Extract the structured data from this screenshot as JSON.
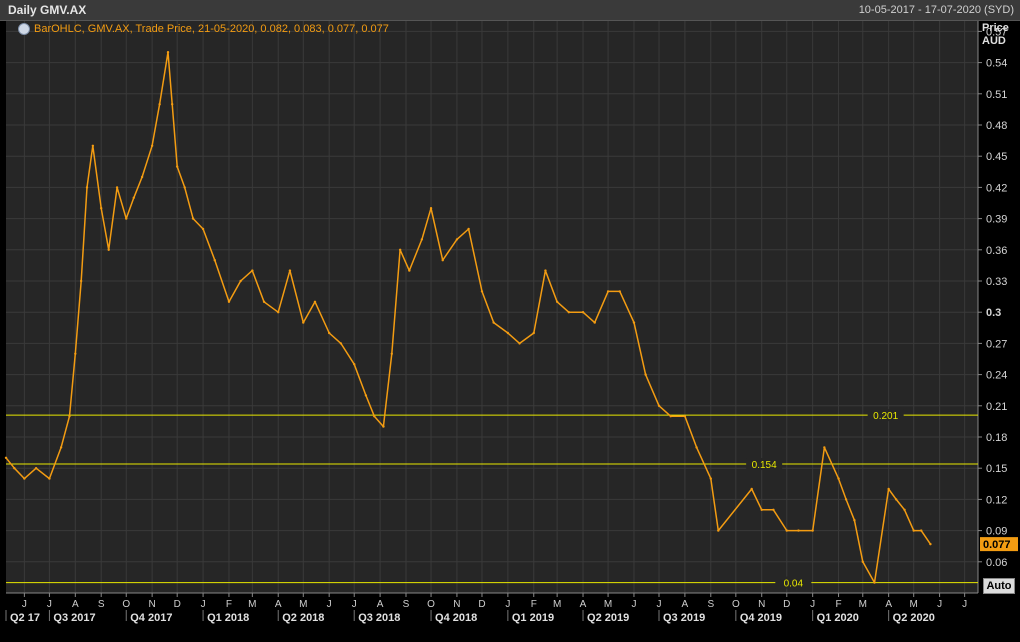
{
  "header": {
    "title": "Daily GMV.AX",
    "date_range": "10-05-2017 - 17-07-2020 (SYD)"
  },
  "legend": {
    "text": "BarOHLC, GMV.AX, Trade Price, 21-05-2020, 0.082, 0.083, 0.077, 0.077",
    "icon": "clock-icon"
  },
  "axis": {
    "price_label": "Price",
    "currency_label": "AUD",
    "auto_label": "Auto"
  },
  "colors": {
    "series": "#f39c12",
    "hline": "#e8e800",
    "background": "#262626",
    "grid": "#3a3a3a"
  },
  "chart_data": {
    "type": "line",
    "x_range": [
      "2017-05-10",
      "2020-07-17"
    ],
    "ylim": [
      0.03,
      0.58
    ],
    "y_ticks": [
      0.57,
      0.54,
      0.51,
      0.48,
      0.45,
      0.42,
      0.39,
      0.36,
      0.33,
      0.3,
      0.27,
      0.24,
      0.21,
      0.18,
      0.15,
      0.12,
      0.09,
      0.06
    ],
    "last_value": "0.077",
    "hlines": [
      {
        "value": 0.201,
        "label": "0.201"
      },
      {
        "value": 0.154,
        "label": "0.154"
      },
      {
        "value": 0.04,
        "label": "0.04"
      }
    ],
    "month_ticks": [
      {
        "date": "2017-06-01",
        "label": "J"
      },
      {
        "date": "2017-07-01",
        "label": "J"
      },
      {
        "date": "2017-08-01",
        "label": "A"
      },
      {
        "date": "2017-09-01",
        "label": "S"
      },
      {
        "date": "2017-10-01",
        "label": "O"
      },
      {
        "date": "2017-11-01",
        "label": "N"
      },
      {
        "date": "2017-12-01",
        "label": "D"
      },
      {
        "date": "2018-01-01",
        "label": "J"
      },
      {
        "date": "2018-02-01",
        "label": "F"
      },
      {
        "date": "2018-03-01",
        "label": "M"
      },
      {
        "date": "2018-04-01",
        "label": "A"
      },
      {
        "date": "2018-05-01",
        "label": "M"
      },
      {
        "date": "2018-06-01",
        "label": "J"
      },
      {
        "date": "2018-07-01",
        "label": "J"
      },
      {
        "date": "2018-08-01",
        "label": "A"
      },
      {
        "date": "2018-09-01",
        "label": "S"
      },
      {
        "date": "2018-10-01",
        "label": "O"
      },
      {
        "date": "2018-11-01",
        "label": "N"
      },
      {
        "date": "2018-12-01",
        "label": "D"
      },
      {
        "date": "2019-01-01",
        "label": "J"
      },
      {
        "date": "2019-02-01",
        "label": "F"
      },
      {
        "date": "2019-03-01",
        "label": "M"
      },
      {
        "date": "2019-04-01",
        "label": "A"
      },
      {
        "date": "2019-05-01",
        "label": "M"
      },
      {
        "date": "2019-06-01",
        "label": "J"
      },
      {
        "date": "2019-07-01",
        "label": "J"
      },
      {
        "date": "2019-08-01",
        "label": "A"
      },
      {
        "date": "2019-09-01",
        "label": "S"
      },
      {
        "date": "2019-10-01",
        "label": "O"
      },
      {
        "date": "2019-11-01",
        "label": "N"
      },
      {
        "date": "2019-12-01",
        "label": "D"
      },
      {
        "date": "2020-01-01",
        "label": "J"
      },
      {
        "date": "2020-02-01",
        "label": "F"
      },
      {
        "date": "2020-03-01",
        "label": "M"
      },
      {
        "date": "2020-04-01",
        "label": "A"
      },
      {
        "date": "2020-05-01",
        "label": "M"
      },
      {
        "date": "2020-06-01",
        "label": "J"
      },
      {
        "date": "2020-07-01",
        "label": "J"
      }
    ],
    "quarter_labels": [
      {
        "date": "2017-05-10",
        "label": "Q2 17"
      },
      {
        "date": "2017-07-01",
        "label": "Q3 2017"
      },
      {
        "date": "2017-10-01",
        "label": "Q4 2017"
      },
      {
        "date": "2018-01-01",
        "label": "Q1 2018"
      },
      {
        "date": "2018-04-01",
        "label": "Q2 2018"
      },
      {
        "date": "2018-07-01",
        "label": "Q3 2018"
      },
      {
        "date": "2018-10-01",
        "label": "Q4 2018"
      },
      {
        "date": "2019-01-01",
        "label": "Q1 2019"
      },
      {
        "date": "2019-04-01",
        "label": "Q2 2019"
      },
      {
        "date": "2019-07-01",
        "label": "Q3 2019"
      },
      {
        "date": "2019-10-01",
        "label": "Q4 2019"
      },
      {
        "date": "2020-01-01",
        "label": "Q1 2020"
      },
      {
        "date": "2020-04-01",
        "label": "Q2 2020"
      }
    ],
    "series": [
      {
        "x": [
          "2017-05-10",
          "2017-05-20",
          "2017-06-01",
          "2017-06-15",
          "2017-07-01",
          "2017-07-15",
          "2017-07-25",
          "2017-08-01",
          "2017-08-08",
          "2017-08-15",
          "2017-08-22",
          "2017-09-01",
          "2017-09-10",
          "2017-09-20",
          "2017-10-01",
          "2017-10-10",
          "2017-10-20",
          "2017-11-01",
          "2017-11-10",
          "2017-11-20",
          "2017-11-25",
          "2017-12-01",
          "2017-12-10",
          "2017-12-20",
          "2018-01-01",
          "2018-01-15",
          "2018-02-01",
          "2018-02-15",
          "2018-03-01",
          "2018-03-15",
          "2018-04-01",
          "2018-04-15",
          "2018-05-01",
          "2018-05-15",
          "2018-06-01",
          "2018-06-15",
          "2018-07-01",
          "2018-07-15",
          "2018-07-25",
          "2018-08-05",
          "2018-08-15",
          "2018-08-25",
          "2018-09-05",
          "2018-09-20",
          "2018-10-01",
          "2018-10-15",
          "2018-11-01",
          "2018-11-15",
          "2018-12-01",
          "2018-12-15",
          "2019-01-01",
          "2019-01-15",
          "2019-02-01",
          "2019-02-15",
          "2019-03-01",
          "2019-03-15",
          "2019-04-01",
          "2019-04-15",
          "2019-05-01",
          "2019-05-15",
          "2019-06-01",
          "2019-06-15",
          "2019-07-01",
          "2019-07-15",
          "2019-08-01",
          "2019-08-15",
          "2019-09-01",
          "2019-09-10",
          "2019-10-20",
          "2019-11-01",
          "2019-11-15",
          "2019-12-01",
          "2019-12-15",
          "2020-01-01",
          "2020-01-15",
          "2020-02-01",
          "2020-02-10",
          "2020-02-20",
          "2020-03-01",
          "2020-03-15",
          "2020-04-01",
          "2020-04-10",
          "2020-04-20",
          "2020-05-01",
          "2020-05-10",
          "2020-05-21"
        ],
        "values": [
          0.16,
          0.15,
          0.14,
          0.15,
          0.14,
          0.17,
          0.2,
          0.26,
          0.33,
          0.42,
          0.46,
          0.4,
          0.36,
          0.42,
          0.39,
          0.41,
          0.43,
          0.46,
          0.5,
          0.55,
          0.5,
          0.44,
          0.42,
          0.39,
          0.38,
          0.35,
          0.31,
          0.33,
          0.34,
          0.31,
          0.3,
          0.34,
          0.29,
          0.31,
          0.28,
          0.27,
          0.25,
          0.22,
          0.2,
          0.19,
          0.26,
          0.36,
          0.34,
          0.37,
          0.4,
          0.35,
          0.37,
          0.38,
          0.32,
          0.29,
          0.28,
          0.27,
          0.28,
          0.34,
          0.31,
          0.3,
          0.3,
          0.29,
          0.32,
          0.32,
          0.29,
          0.24,
          0.21,
          0.2,
          0.2,
          0.17,
          0.14,
          0.09,
          0.13,
          0.11,
          0.11,
          0.09,
          0.09,
          0.09,
          0.17,
          0.14,
          0.12,
          0.1,
          0.06,
          0.04,
          0.13,
          0.12,
          0.11,
          0.09,
          0.09,
          0.077
        ]
      }
    ]
  }
}
